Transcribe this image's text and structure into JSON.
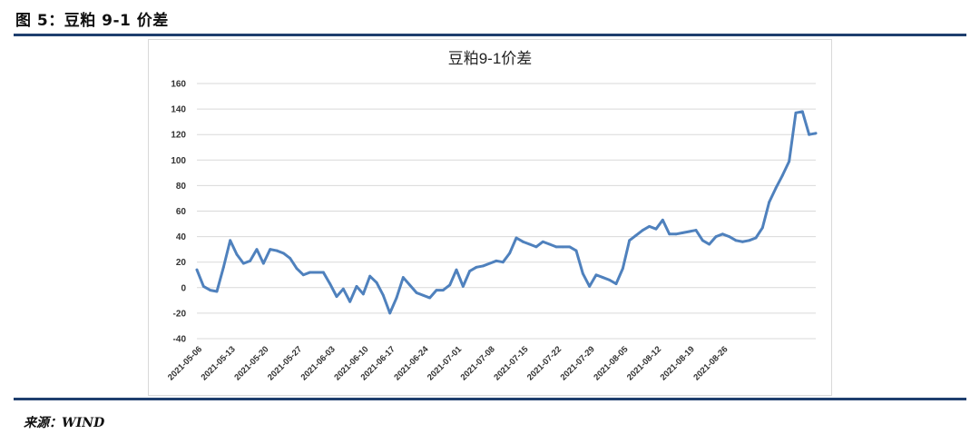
{
  "figure": {
    "header": "图 5：豆粕 9-1 价差",
    "source": "来源：WIND"
  },
  "colors": {
    "rule": "#1f3f6e",
    "line": "#4f81bd",
    "grid": "#d9d9d9"
  },
  "chart_data": {
    "type": "line",
    "title": "豆粕9-1价差",
    "xlabel": "",
    "ylabel": "",
    "ylim": [
      -40,
      160
    ],
    "yticks": [
      -40,
      -20,
      0,
      20,
      40,
      60,
      80,
      100,
      120,
      140,
      160
    ],
    "grid": true,
    "legend": "none",
    "xtick_labels": [
      "2021-05-06",
      "2021-05-13",
      "2021-05-20",
      "2021-05-27",
      "2021-06-03",
      "2021-06-10",
      "2021-06-17",
      "2021-06-24",
      "2021-07-01",
      "2021-07-08",
      "2021-07-15",
      "2021-07-22",
      "2021-07-29",
      "2021-08-05",
      "2021-08-12",
      "2021-08-19",
      "2021-08-26"
    ],
    "series": [
      {
        "values": [
          {
            "x": "2021-05-06",
            "y": 14
          },
          {
            "x": "2021-05-07",
            "y": 1
          },
          {
            "x": "2021-05-10",
            "y": -2
          },
          {
            "x": "2021-05-11",
            "y": -3
          },
          {
            "x": "2021-05-12",
            "y": 16
          },
          {
            "x": "2021-05-13",
            "y": 37
          },
          {
            "x": "2021-05-14",
            "y": 26
          },
          {
            "x": "2021-05-17",
            "y": 19
          },
          {
            "x": "2021-05-18",
            "y": 21
          },
          {
            "x": "2021-05-19",
            "y": 30
          },
          {
            "x": "2021-05-20",
            "y": 19
          },
          {
            "x": "2021-05-21",
            "y": 30
          },
          {
            "x": "2021-05-24",
            "y": 29
          },
          {
            "x": "2021-05-25",
            "y": 27
          },
          {
            "x": "2021-05-26",
            "y": 23
          },
          {
            "x": "2021-05-27",
            "y": 15
          },
          {
            "x": "2021-05-28",
            "y": 10
          },
          {
            "x": "2021-05-31",
            "y": 12
          },
          {
            "x": "2021-06-01",
            "y": 12
          },
          {
            "x": "2021-06-02",
            "y": 12
          },
          {
            "x": "2021-06-03",
            "y": 3
          },
          {
            "x": "2021-06-04",
            "y": -7
          },
          {
            "x": "2021-06-07",
            "y": -1
          },
          {
            "x": "2021-06-08",
            "y": -11
          },
          {
            "x": "2021-06-09",
            "y": 1
          },
          {
            "x": "2021-06-10",
            "y": -5
          },
          {
            "x": "2021-06-11",
            "y": 9
          },
          {
            "x": "2021-06-15",
            "y": 4
          },
          {
            "x": "2021-06-16",
            "y": -6
          },
          {
            "x": "2021-06-17",
            "y": -20
          },
          {
            "x": "2021-06-18",
            "y": -8
          },
          {
            "x": "2021-06-21",
            "y": 8
          },
          {
            "x": "2021-06-22",
            "y": 2
          },
          {
            "x": "2021-06-23",
            "y": -4
          },
          {
            "x": "2021-06-24",
            "y": -6
          },
          {
            "x": "2021-06-25",
            "y": -8
          },
          {
            "x": "2021-06-28",
            "y": -2
          },
          {
            "x": "2021-06-29",
            "y": -2
          },
          {
            "x": "2021-06-30",
            "y": 2
          },
          {
            "x": "2021-07-01",
            "y": 14
          },
          {
            "x": "2021-07-02",
            "y": 1
          },
          {
            "x": "2021-07-05",
            "y": 13
          },
          {
            "x": "2021-07-06",
            "y": 16
          },
          {
            "x": "2021-07-07",
            "y": 17
          },
          {
            "x": "2021-07-08",
            "y": 19
          },
          {
            "x": "2021-07-09",
            "y": 21
          },
          {
            "x": "2021-07-12",
            "y": 20
          },
          {
            "x": "2021-07-13",
            "y": 27
          },
          {
            "x": "2021-07-14",
            "y": 39
          },
          {
            "x": "2021-07-15",
            "y": 36
          },
          {
            "x": "2021-07-16",
            "y": 34
          },
          {
            "x": "2021-07-19",
            "y": 32
          },
          {
            "x": "2021-07-20",
            "y": 36
          },
          {
            "x": "2021-07-21",
            "y": 34
          },
          {
            "x": "2021-07-22",
            "y": 32
          },
          {
            "x": "2021-07-23",
            "y": 32
          },
          {
            "x": "2021-07-26",
            "y": 32
          },
          {
            "x": "2021-07-27",
            "y": 29
          },
          {
            "x": "2021-07-28",
            "y": 11
          },
          {
            "x": "2021-07-29",
            "y": 1
          },
          {
            "x": "2021-07-30",
            "y": 10
          },
          {
            "x": "2021-08-02",
            "y": 8
          },
          {
            "x": "2021-08-03",
            "y": 6
          },
          {
            "x": "2021-08-04",
            "y": 3
          },
          {
            "x": "2021-08-05",
            "y": 15
          },
          {
            "x": "2021-08-06",
            "y": 37
          },
          {
            "x": "2021-08-09",
            "y": 41
          },
          {
            "x": "2021-08-10",
            "y": 45
          },
          {
            "x": "2021-08-11",
            "y": 48
          },
          {
            "x": "2021-08-12",
            "y": 46
          },
          {
            "x": "2021-08-13",
            "y": 53
          },
          {
            "x": "2021-08-16",
            "y": 42
          },
          {
            "x": "2021-08-17",
            "y": 42
          },
          {
            "x": "2021-08-18",
            "y": 43
          },
          {
            "x": "2021-08-19",
            "y": 44
          },
          {
            "x": "2021-08-20",
            "y": 45
          },
          {
            "x": "2021-08-23",
            "y": 37
          },
          {
            "x": "2021-08-24",
            "y": 34
          },
          {
            "x": "2021-08-25",
            "y": 40
          },
          {
            "x": "2021-08-26",
            "y": 42
          },
          {
            "x": "2021-08-27",
            "y": 40
          },
          {
            "x": "2021-08-30",
            "y": 37
          },
          {
            "x": "2021-08-31",
            "y": 36
          },
          {
            "x": "2021-09-01",
            "y": 37
          },
          {
            "x": "2021-09-02",
            "y": 39
          },
          {
            "x": "2021-09-03",
            "y": 47
          },
          {
            "x": "2021-09-06",
            "y": 67
          },
          {
            "x": "2021-09-07",
            "y": 78
          },
          {
            "x": "2021-09-08",
            "y": 88
          },
          {
            "x": "2021-09-09",
            "y": 99
          },
          {
            "x": "2021-09-10",
            "y": 137
          },
          {
            "x": "2021-09-13",
            "y": 138
          },
          {
            "x": "2021-09-14",
            "y": 120
          },
          {
            "x": "2021-09-15",
            "y": 121
          }
        ]
      }
    ]
  }
}
